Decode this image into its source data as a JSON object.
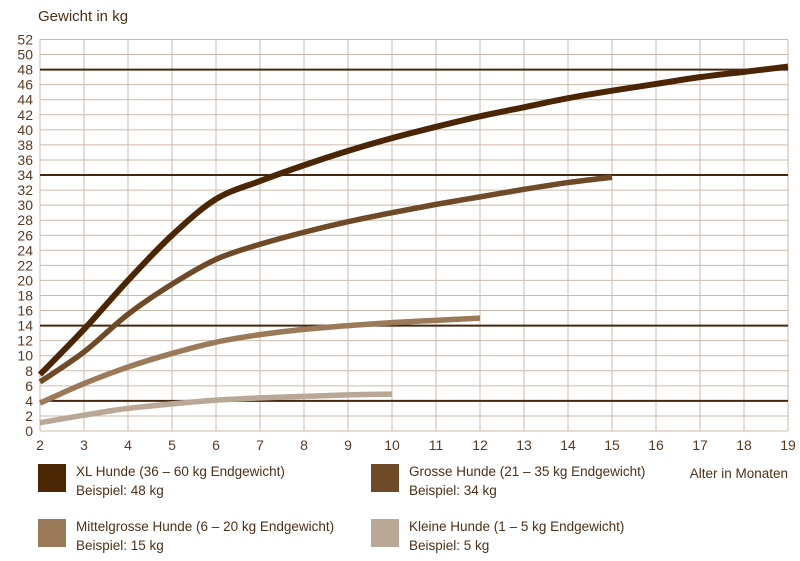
{
  "chart": {
    "title": "Gewicht in kg",
    "x_axis_title": "Alter in Monaten"
  },
  "chart_data": {
    "type": "line",
    "title": "Gewicht in kg",
    "ylabel": "Gewicht in kg",
    "xlabel": "Alter in Monaten",
    "xlim": [
      2,
      19
    ],
    "ylim": [
      0,
      52
    ],
    "x_ticks": [
      2,
      3,
      4,
      5,
      6,
      7,
      8,
      9,
      10,
      11,
      12,
      13,
      14,
      15,
      16,
      17,
      18,
      19
    ],
    "y_ticks": [
      0,
      2,
      4,
      6,
      8,
      10,
      12,
      14,
      16,
      18,
      20,
      22,
      24,
      26,
      28,
      30,
      32,
      34,
      36,
      38,
      40,
      42,
      44,
      46,
      48,
      50,
      52
    ],
    "grid": true,
    "legend_position": "bottom",
    "reference_lines_y": [
      48,
      34,
      14,
      4
    ],
    "series": [
      {
        "id": "xl",
        "name": "XL Hunde (36 – 60 kg Endgewicht)",
        "example": "Beispiel: 48 kg",
        "color": "#4b2605",
        "stroke_width": 6,
        "x": [
          2,
          3,
          4,
          5,
          6,
          7,
          8,
          9,
          10,
          11,
          12,
          13,
          14,
          15,
          16,
          17,
          18,
          19
        ],
        "values": [
          7.5,
          13.5,
          20.0,
          26.0,
          30.8,
          33.2,
          35.3,
          37.2,
          38.9,
          40.4,
          41.8,
          43.0,
          44.2,
          45.2,
          46.1,
          47.0,
          47.7,
          48.4
        ]
      },
      {
        "id": "grosse",
        "name": "Grosse Hunde (21 – 35 kg Endgewicht)",
        "example": "Beispiel: 34 kg",
        "color": "#6f4a28",
        "stroke_width": 5.5,
        "x": [
          2,
          3,
          4,
          5,
          6,
          7,
          8,
          9,
          10,
          11,
          12,
          13,
          14,
          15
        ],
        "values": [
          6.5,
          10.5,
          15.5,
          19.5,
          22.8,
          24.8,
          26.4,
          27.8,
          29.0,
          30.1,
          31.1,
          32.1,
          33.0,
          33.7
        ]
      },
      {
        "id": "mittelgrosse",
        "name": "Mittelgrosse Hunde (6 – 20 kg Endgewicht)",
        "example": "Beispiel: 15 kg",
        "color": "#9a7a58",
        "stroke_width": 5.5,
        "x": [
          2,
          3,
          4,
          5,
          6,
          7,
          8,
          9,
          10,
          11,
          12
        ],
        "values": [
          3.7,
          6.3,
          8.5,
          10.3,
          11.8,
          12.8,
          13.5,
          14.0,
          14.4,
          14.7,
          15.0
        ]
      },
      {
        "id": "kleine",
        "name": "Kleine Hunde (1 – 5 kg Endgewicht)",
        "example": "Beispiel: 5 kg",
        "color": "#b9a896",
        "stroke_width": 5.5,
        "x": [
          2,
          3,
          4,
          5,
          6,
          7,
          8,
          9,
          10
        ],
        "values": [
          1.1,
          2.1,
          3.0,
          3.6,
          4.1,
          4.4,
          4.6,
          4.8,
          4.9
        ]
      }
    ],
    "colors": {
      "grid": "#ccbbac",
      "reference_line": "#46260e",
      "text": "#4d3017",
      "tick_text": "#5b3a22",
      "background": "#ffffff"
    }
  }
}
